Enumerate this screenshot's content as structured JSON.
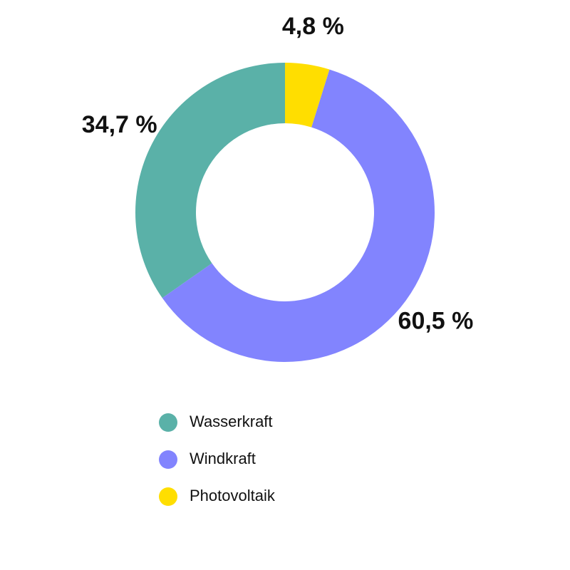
{
  "chart_data": {
    "type": "donut",
    "categories": [
      "Wasserkraft",
      "Windkraft",
      "Photovoltaik"
    ],
    "values": [
      34.7,
      60.5,
      4.8
    ],
    "value_labels": [
      "34,7 %",
      "60,5 %",
      "4,8 %"
    ],
    "colors": [
      "#5ab1a8",
      "#8284fe",
      "#ffde00"
    ]
  }
}
